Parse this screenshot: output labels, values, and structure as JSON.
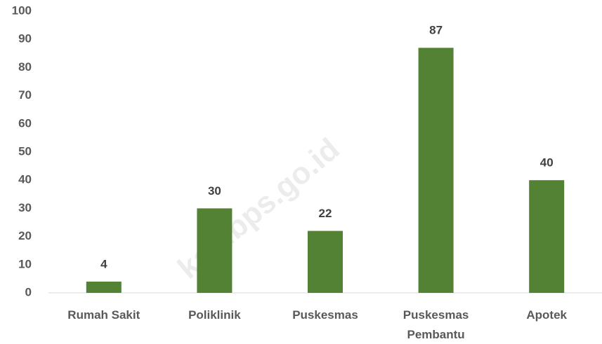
{
  "chart_data": {
    "type": "bar",
    "categories": [
      "Rumah Sakit",
      "Poliklinik",
      "Puskesmas",
      "Puskesmas Pembantu",
      "Apotek"
    ],
    "values": [
      4,
      30,
      22,
      87,
      40
    ],
    "color": "#548235",
    "ylim": [
      0,
      100
    ],
    "yticks": [
      0,
      10,
      20,
      30,
      40,
      50,
      60,
      70,
      80,
      90,
      100
    ],
    "grid": false,
    "watermark": "kab.bps.go.id"
  }
}
